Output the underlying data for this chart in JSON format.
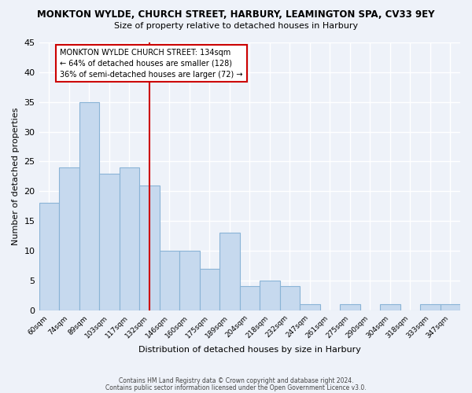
{
  "title": "MONKTON WYLDE, CHURCH STREET, HARBURY, LEAMINGTON SPA, CV33 9EY",
  "subtitle": "Size of property relative to detached houses in Harbury",
  "xlabel": "Distribution of detached houses by size in Harbury",
  "ylabel": "Number of detached properties",
  "bar_labels": [
    "60sqm",
    "74sqm",
    "89sqm",
    "103sqm",
    "117sqm",
    "132sqm",
    "146sqm",
    "160sqm",
    "175sqm",
    "189sqm",
    "204sqm",
    "218sqm",
    "232sqm",
    "247sqm",
    "261sqm",
    "275sqm",
    "290sqm",
    "304sqm",
    "318sqm",
    "333sqm",
    "347sqm"
  ],
  "bar_values": [
    18,
    24,
    35,
    23,
    24,
    21,
    10,
    10,
    7,
    13,
    4,
    5,
    4,
    1,
    0,
    1,
    0,
    1,
    0,
    1,
    1
  ],
  "bar_color": "#c6d9ee",
  "bar_edge_color": "#8ab4d6",
  "vline_x": 5,
  "vline_color": "#cc0000",
  "annotation_title": "MONKTON WYLDE CHURCH STREET: 134sqm",
  "annotation_line1": "← 64% of detached houses are smaller (128)",
  "annotation_line2": "36% of semi-detached houses are larger (72) →",
  "ylim": [
    0,
    45
  ],
  "yticks": [
    0,
    5,
    10,
    15,
    20,
    25,
    30,
    35,
    40,
    45
  ],
  "footer1": "Contains HM Land Registry data © Crown copyright and database right 2024.",
  "footer2": "Contains public sector information licensed under the Open Government Licence v3.0.",
  "background_color": "#eef2f9",
  "plot_background": "#eef2f9",
  "grid_color": "#ffffff",
  "ann_box_edge_color": "#cc0000",
  "ann_box_face_color": "#ffffff"
}
